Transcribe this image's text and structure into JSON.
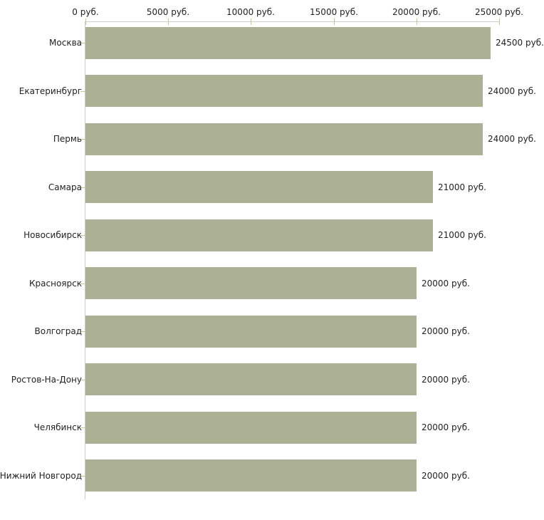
{
  "chart_data": {
    "type": "bar",
    "orientation": "horizontal",
    "title": "",
    "unit": "руб.",
    "categories": [
      "Москва",
      "Екатеринбург",
      "Пермь",
      "Самара",
      "Новосибирск",
      "Красноярск",
      "Волгоград",
      "Ростов-На-Дону",
      "Челябинск",
      "Нижний Новгород"
    ],
    "values": [
      24500,
      24000,
      24000,
      21000,
      21000,
      20000,
      20000,
      20000,
      20000,
      20000
    ],
    "value_labels": [
      "24500 руб.",
      "24000 руб.",
      "24000 руб.",
      "21000 руб.",
      "21000 руб.",
      "20000 руб.",
      "20000 руб.",
      "20000 руб.",
      "20000 руб.",
      "20000 руб."
    ],
    "x_axis": {
      "position": "top",
      "min": 0,
      "max": 25000,
      "ticks": [
        0,
        5000,
        10000,
        15000,
        20000,
        25000
      ],
      "tick_labels": [
        "0 руб.",
        "5000 руб.",
        "10000 руб.",
        "15000 руб.",
        "20000 руб.",
        "25000 руб."
      ]
    },
    "legend": "none",
    "grid": "off",
    "colors": {
      "bar": "#acb196",
      "axis_line": "#cccccc",
      "tick": "#c5c596",
      "text": "#222222",
      "background": "#ffffff"
    }
  }
}
